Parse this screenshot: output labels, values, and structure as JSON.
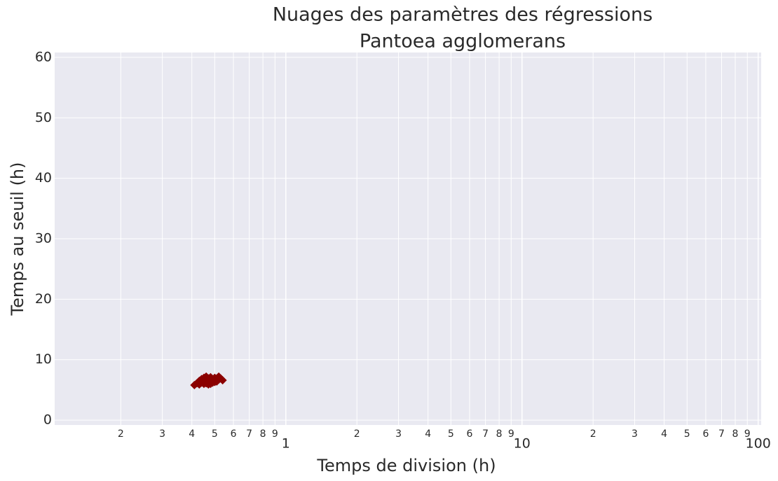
{
  "chart_data": {
    "type": "scatter",
    "title": "Nuages des paramètres des régressions",
    "subtitle": "Pantoea agglomerans",
    "x_label": "Temps de division (h)",
    "y_label": "Temps au seuil (h)",
    "color": "#8b0000",
    "log_x": true,
    "grid": true,
    "xlim": [
      0.105,
      103
    ],
    "ylim": [
      -0.8,
      60.8
    ],
    "xticks": [
      {
        "value": 0.2,
        "label": "2"
      },
      {
        "value": 0.3,
        "label": "3"
      },
      {
        "value": 0.4,
        "label": "4"
      },
      {
        "value": 0.5,
        "label": "5"
      },
      {
        "value": 0.6,
        "label": "6"
      },
      {
        "value": 0.7,
        "label": "7"
      },
      {
        "value": 0.8,
        "label": "8"
      },
      {
        "value": 0.9,
        "label": "9"
      },
      1,
      2,
      3,
      4,
      5,
      6,
      7,
      8,
      9,
      10,
      {
        "value": 20,
        "label": "2"
      },
      {
        "value": 30,
        "label": "3"
      },
      {
        "value": 40,
        "label": "4"
      },
      {
        "value": 50,
        "label": "5"
      },
      {
        "value": 60,
        "label": "6"
      },
      {
        "value": 70,
        "label": "7"
      },
      {
        "value": 80,
        "label": "8"
      },
      {
        "value": 90,
        "label": "9"
      },
      100
    ],
    "yticks": [
      0,
      10,
      20,
      30,
      40,
      50,
      60
    ],
    "x": [
      0.41,
      0.42,
      0.43,
      0.43,
      0.44,
      0.44,
      0.45,
      0.45,
      0.45,
      0.46,
      0.46,
      0.47,
      0.47,
      0.47,
      0.48,
      0.48,
      0.49,
      0.49,
      0.5,
      0.5,
      0.51,
      0.51,
      0.52,
      0.52,
      0.53,
      0.54,
      0.44,
      0.46,
      0.48,
      0.5,
      0.43,
      0.47
    ],
    "values": [
      5.8,
      6.1,
      6.5,
      5.9,
      6.8,
      6.2,
      7.0,
      6.4,
      6.0,
      7.2,
      6.6,
      6.9,
      6.3,
      5.9,
      7.1,
      6.5,
      6.8,
      6.2,
      7.0,
      6.6,
      6.9,
      6.4,
      7.2,
      6.7,
      6.9,
      6.6,
      6.6,
      6.1,
      6.0,
      6.3,
      6.3,
      6.7
    ]
  }
}
